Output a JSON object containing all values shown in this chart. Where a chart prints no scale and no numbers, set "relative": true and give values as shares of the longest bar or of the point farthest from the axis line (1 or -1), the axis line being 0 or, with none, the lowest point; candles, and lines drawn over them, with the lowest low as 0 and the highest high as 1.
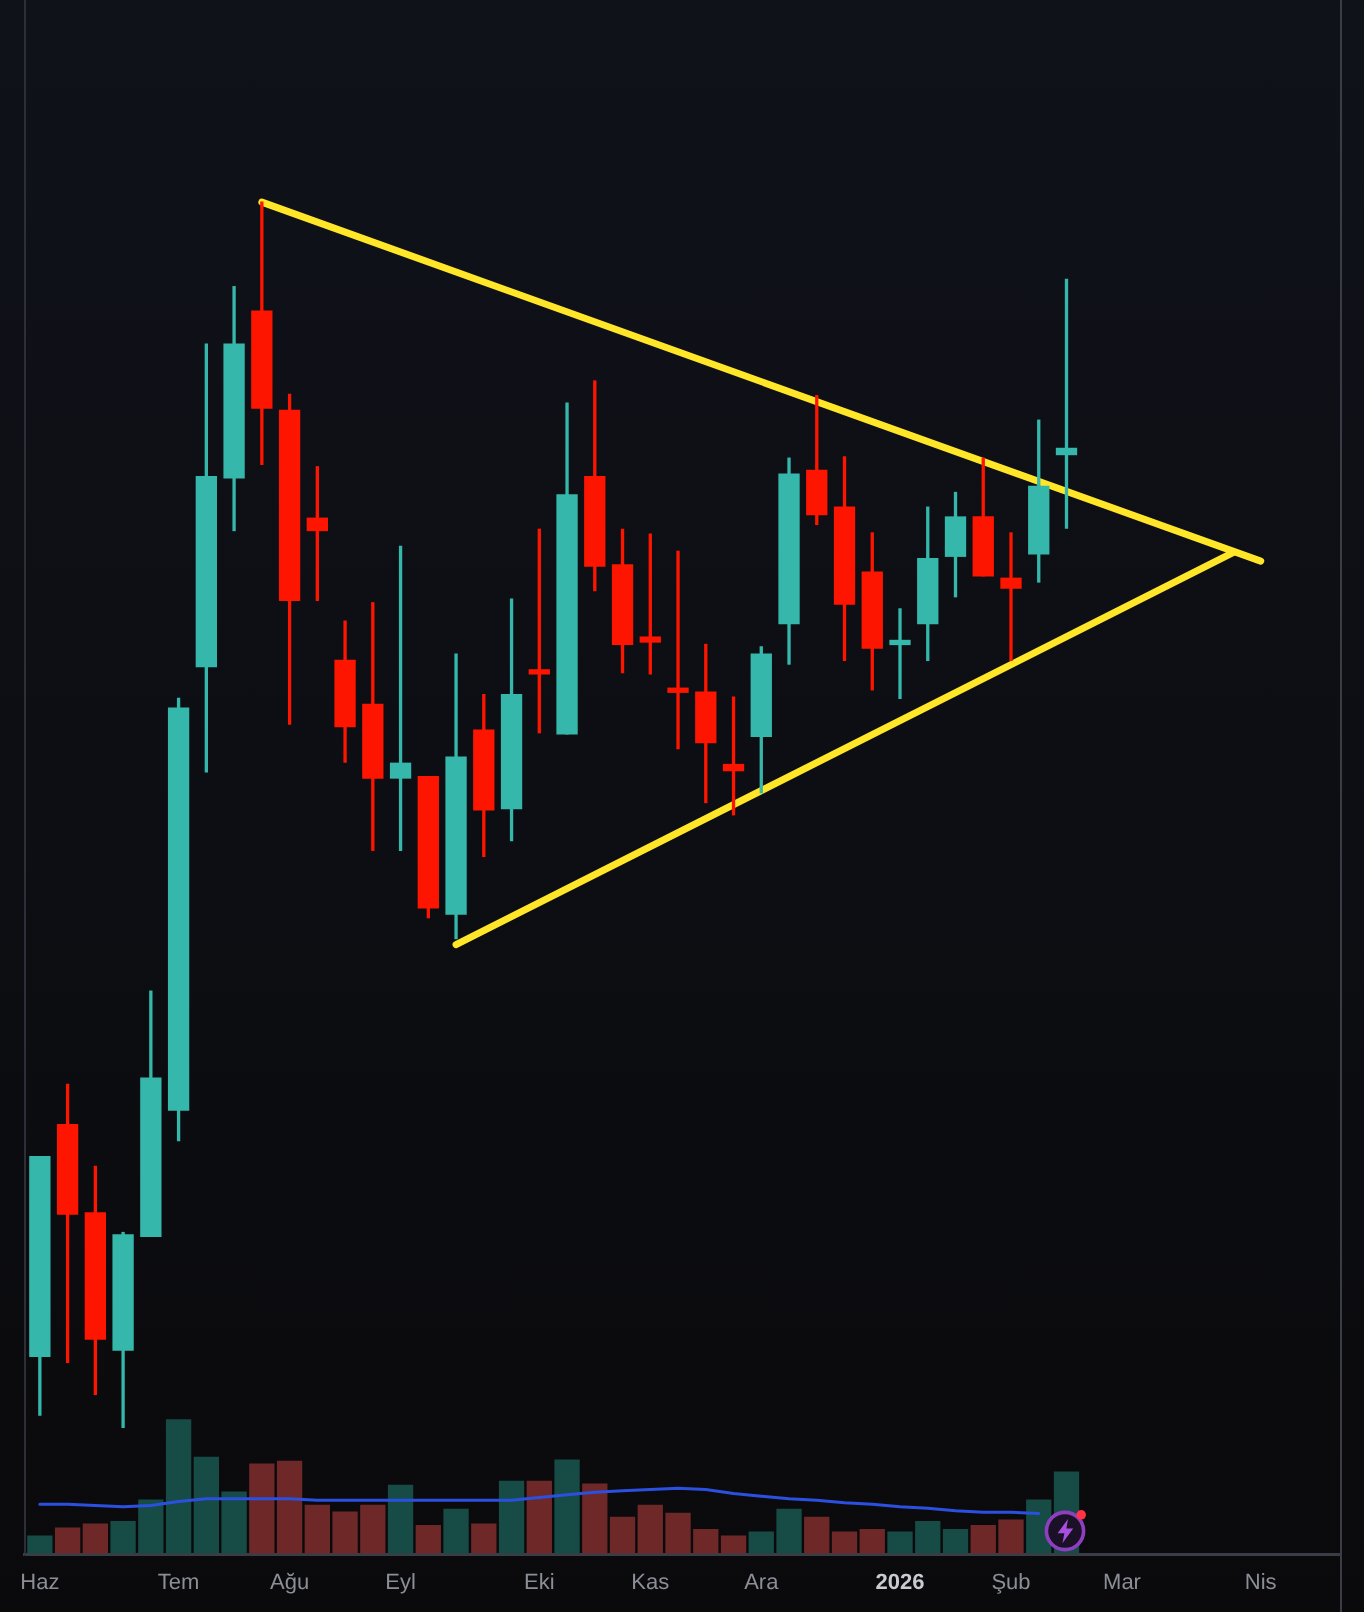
{
  "chart_data": [
    {
      "type": "candlestick",
      "relative": true,
      "tick_labels": false,
      "marker": "none",
      "x": [
        "2025-06-02",
        "2025-06-09",
        "2025-06-16",
        "2025-06-23",
        "2025-06-30",
        "2025-07-07",
        "2025-07-14",
        "2025-07-21",
        "2025-07-28",
        "2025-08-04",
        "2025-08-11",
        "2025-08-18",
        "2025-08-25",
        "2025-09-01",
        "2025-09-08",
        "2025-09-15",
        "2025-09-22",
        "2025-09-29",
        "2025-10-06",
        "2025-10-13",
        "2025-10-20",
        "2025-10-27",
        "2025-11-03",
        "2025-11-10",
        "2025-11-17",
        "2025-11-24",
        "2025-12-01",
        "2025-12-08",
        "2025-12-15",
        "2025-12-22",
        "2025-12-29",
        "2026-01-05",
        "2026-01-12",
        "2026-01-19",
        "2026-01-26",
        "2026-02-02",
        "2026-02-09",
        "2026-02-16"
      ],
      "ohlc": [
        [
          0.058,
          0.221,
          0.01,
          0.221
        ],
        [
          0.247,
          0.28,
          0.053,
          0.174
        ],
        [
          0.175,
          0.213,
          0.027,
          0.072
        ],
        [
          0.063,
          0.159,
          0.0,
          0.157
        ],
        [
          0.156,
          0.356,
          0.156,
          0.285
        ],
        [
          0.259,
          0.595,
          0.234,
          0.587
        ],
        [
          0.621,
          0.884,
          0.535,
          0.776
        ],
        [
          0.775,
          0.931,
          0.732,
          0.884
        ],
        [
          0.911,
          1.0,
          0.786,
          0.832
        ],
        [
          0.83,
          0.843,
          0.574,
          0.675
        ],
        [
          0.742,
          0.784,
          0.675,
          0.732
        ],
        [
          0.626,
          0.658,
          0.543,
          0.572
        ],
        [
          0.59,
          0.673,
          0.471,
          0.53
        ],
        [
          0.53,
          0.719,
          0.471,
          0.542
        ],
        [
          0.531,
          0.531,
          0.416,
          0.424
        ],
        [
          0.419,
          0.631,
          0.399,
          0.547
        ],
        [
          0.569,
          0.598,
          0.466,
          0.504
        ],
        [
          0.505,
          0.676,
          0.479,
          0.598
        ],
        [
          0.616,
          0.733,
          0.567,
          0.615
        ],
        [
          0.566,
          0.836,
          0.566,
          0.761
        ],
        [
          0.776,
          0.854,
          0.683,
          0.703
        ],
        [
          0.704,
          0.733,
          0.616,
          0.639
        ],
        [
          0.645,
          0.729,
          0.615,
          0.641
        ],
        [
          0.601,
          0.715,
          0.554,
          0.6
        ],
        [
          0.6,
          0.639,
          0.51,
          0.559
        ],
        [
          0.541,
          0.596,
          0.5,
          0.536
        ],
        [
          0.564,
          0.637,
          0.518,
          0.631
        ],
        [
          0.656,
          0.791,
          0.623,
          0.778
        ],
        [
          0.781,
          0.842,
          0.737,
          0.745
        ],
        [
          0.751,
          0.792,
          0.626,
          0.672
        ],
        [
          0.698,
          0.73,
          0.602,
          0.636
        ],
        [
          0.639,
          0.668,
          0.595,
          0.64
        ],
        [
          0.656,
          0.751,
          0.626,
          0.709
        ],
        [
          0.711,
          0.763,
          0.678,
          0.743
        ],
        [
          0.743,
          0.791,
          0.695,
          0.695
        ],
        [
          0.693,
          0.73,
          0.626,
          0.685
        ],
        [
          0.713,
          0.822,
          0.69,
          0.768
        ],
        [
          0.794,
          0.937,
          0.734,
          0.799
        ]
      ],
      "colors": [
        "#35b8ab",
        "#fe1500",
        "#fe1500",
        "#35b8ab",
        "#35b8ab",
        "#35b8ab",
        "#35b8ab",
        "#35b8ab",
        "#fe1500",
        "#fe1500",
        "#fe1500",
        "#fe1500",
        "#fe1500",
        "#35b8ab",
        "#fe1500",
        "#35b8ab",
        "#fe1500",
        "#35b8ab",
        "#fe1500",
        "#35b8ab",
        "#fe1500",
        "#fe1500",
        "#fe1500",
        "#fe1500",
        "#fe1500",
        "#fe1500",
        "#35b8ab",
        "#35b8ab",
        "#fe1500",
        "#fe1500",
        "#fe1500",
        "#35b8ab",
        "#35b8ab",
        "#35b8ab",
        "#fe1500",
        "#fe1500",
        "#35b8ab",
        "#35b8ab"
      ],
      "xlim": [
        "2025-05-29",
        "2026-04-26"
      ],
      "series": [
        {
          "type": "line",
          "x": [
            "2025-07-28",
            "2026-04-06"
          ],
          "values": [
            1.0,
            0.707
          ],
          "color": "#ffe628"
        },
        {
          "type": "line",
          "x": [
            "2025-09-15",
            "2026-03-30"
          ],
          "values": [
            0.394,
            0.714
          ],
          "color": "#ffe628"
        }
      ]
    },
    {
      "type": "bar",
      "relative": true,
      "tick_labels": "x",
      "marker": "none",
      "x": [
        "2025-06-02",
        "2025-06-09",
        "2025-06-16",
        "2025-06-23",
        "2025-06-30",
        "2025-07-07",
        "2025-07-14",
        "2025-07-21",
        "2025-07-28",
        "2025-08-04",
        "2025-08-11",
        "2025-08-18",
        "2025-08-25",
        "2025-09-01",
        "2025-09-08",
        "2025-09-15",
        "2025-09-22",
        "2025-09-29",
        "2025-10-06",
        "2025-10-13",
        "2025-10-20",
        "2025-10-27",
        "2025-11-03",
        "2025-11-10",
        "2025-11-17",
        "2025-11-24",
        "2025-12-01",
        "2025-12-08",
        "2025-12-15",
        "2025-12-22",
        "2025-12-29",
        "2026-01-05",
        "2026-01-12",
        "2026-01-19",
        "2026-01-26",
        "2026-02-02",
        "2026-02-09",
        "2026-02-16"
      ],
      "xlim": [
        "2025-05-29",
        "2026-04-26"
      ],
      "xticks": [
        {
          "value": "2025-06-02",
          "label": "Haz"
        },
        {
          "value": "2025-07-07",
          "label": "Tem"
        },
        {
          "value": "2025-08-04",
          "label": "Ağu"
        },
        {
          "value": "2025-09-01",
          "label": "Eyl"
        },
        {
          "value": "2025-10-06",
          "label": "Eki"
        },
        {
          "value": "2025-11-03",
          "label": "Kas"
        },
        {
          "value": "2025-12-01",
          "label": "Ara"
        },
        {
          "value": "2026-01-05",
          "label": "2026"
        },
        {
          "value": "2026-02-02",
          "label": "Şub"
        },
        {
          "value": "2026-03-02",
          "label": "Mar"
        },
        {
          "value": "2026-04-06",
          "label": "Nis"
        }
      ],
      "series": [
        {
          "type": "bar",
          "values": [
            0.13,
            0.19,
            0.22,
            0.24,
            0.4,
            1.0,
            0.72,
            0.46,
            0.67,
            0.69,
            0.36,
            0.31,
            0.36,
            0.51,
            0.21,
            0.33,
            0.22,
            0.54,
            0.54,
            0.7,
            0.52,
            0.27,
            0.36,
            0.3,
            0.18,
            0.13,
            0.16,
            0.33,
            0.27,
            0.16,
            0.18,
            0.16,
            0.24,
            0.18,
            0.21,
            0.25,
            0.4,
            0.61
          ],
          "colors": [
            "#164b46",
            "#6e2828",
            "#6e2828",
            "#164b46",
            "#164b46",
            "#164b46",
            "#164b46",
            "#164b46",
            "#6e2828",
            "#6e2828",
            "#6e2828",
            "#6e2828",
            "#6e2828",
            "#164b46",
            "#6e2828",
            "#164b46",
            "#6e2828",
            "#164b46",
            "#6e2828",
            "#164b46",
            "#6e2828",
            "#6e2828",
            "#6e2828",
            "#6e2828",
            "#6e2828",
            "#6e2828",
            "#164b46",
            "#164b46",
            "#6e2828",
            "#6e2828",
            "#6e2828",
            "#164b46",
            "#164b46",
            "#164b46",
            "#6e2828",
            "#6e2828",
            "#164b46",
            "#164b46"
          ]
        },
        {
          "type": "line",
          "values": [
            0.37,
            0.37,
            0.36,
            0.35,
            0.36,
            0.39,
            0.41,
            0.41,
            0.41,
            0.41,
            0.4,
            0.4,
            0.4,
            0.4,
            0.4,
            0.4,
            0.4,
            0.4,
            0.42,
            0.44,
            0.46,
            0.47,
            0.48,
            0.49,
            0.48,
            0.45,
            0.43,
            0.41,
            0.4,
            0.38,
            0.37,
            0.35,
            0.34,
            0.32,
            0.31,
            0.31,
            0.3,
            null
          ],
          "color": "#2b50e0"
        }
      ]
    }
  ]
}
